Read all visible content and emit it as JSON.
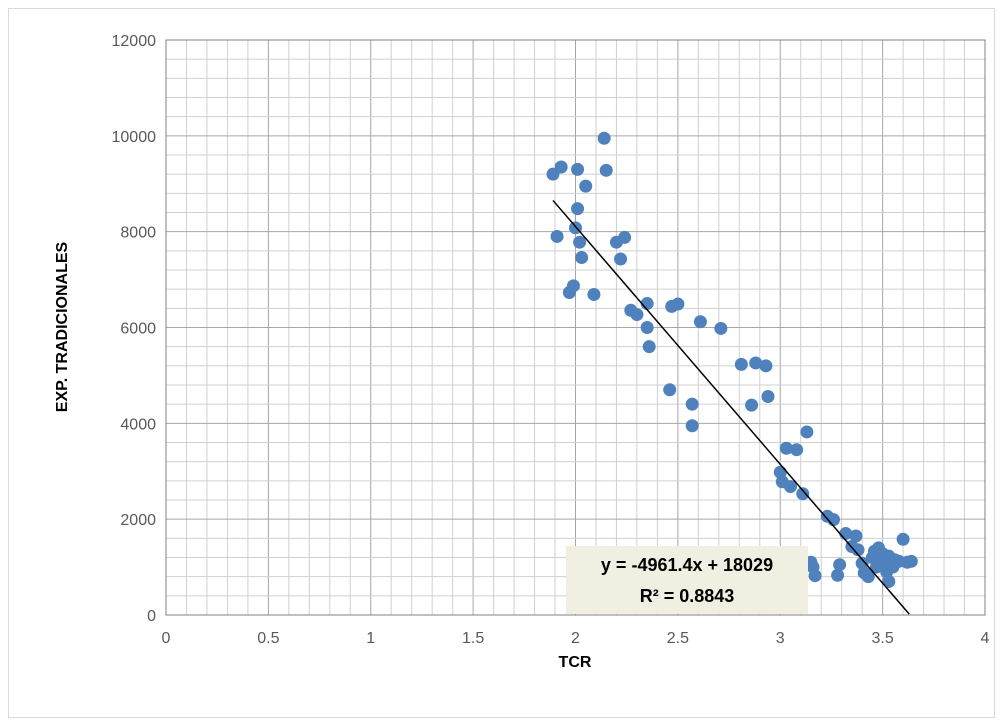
{
  "chart_data": {
    "type": "scatter",
    "title": "",
    "xlabel": "TCR",
    "ylabel": "EXP. TRADICIONALES",
    "xlim": [
      0,
      4
    ],
    "ylim": [
      0,
      12000
    ],
    "x_ticks": [
      "0",
      "0.5",
      "1",
      "1.5",
      "2",
      "2.5",
      "3",
      "3.5",
      "4"
    ],
    "y_ticks": [
      "0",
      "2000",
      "4000",
      "6000",
      "8000",
      "10000",
      "12000"
    ],
    "grid": true,
    "legend": "none",
    "marker_color": "#4f81bd",
    "series": [
      {
        "points": [
          [
            1.89,
            9200
          ],
          [
            1.93,
            9350
          ],
          [
            2.01,
            9300
          ],
          [
            2.14,
            9950
          ],
          [
            2.15,
            9280
          ],
          [
            2.05,
            8950
          ],
          [
            2.01,
            8480
          ],
          [
            2.0,
            8080
          ],
          [
            1.91,
            7900
          ],
          [
            2.02,
            7780
          ],
          [
            2.03,
            7460
          ],
          [
            2.2,
            7780
          ],
          [
            2.24,
            7880
          ],
          [
            2.22,
            7430
          ],
          [
            1.97,
            6730
          ],
          [
            1.99,
            6870
          ],
          [
            2.09,
            6690
          ],
          [
            2.27,
            6360
          ],
          [
            2.3,
            6270
          ],
          [
            2.35,
            6500
          ],
          [
            2.47,
            6440
          ],
          [
            2.5,
            6490
          ],
          [
            2.35,
            6000
          ],
          [
            2.36,
            5600
          ],
          [
            2.61,
            6120
          ],
          [
            2.71,
            5980
          ],
          [
            2.46,
            4700
          ],
          [
            2.57,
            4400
          ],
          [
            2.57,
            3950
          ],
          [
            2.81,
            5230
          ],
          [
            2.88,
            5260
          ],
          [
            2.93,
            5200
          ],
          [
            2.86,
            4380
          ],
          [
            2.94,
            4560
          ],
          [
            3.13,
            3820
          ],
          [
            3.03,
            3480
          ],
          [
            3.08,
            3450
          ],
          [
            3.0,
            2980
          ],
          [
            3.01,
            2780
          ],
          [
            3.05,
            2680
          ],
          [
            3.11,
            2530
          ],
          [
            3.23,
            2060
          ],
          [
            3.26,
            1990
          ],
          [
            3.32,
            1700
          ],
          [
            3.37,
            1650
          ],
          [
            3.35,
            1430
          ],
          [
            3.38,
            1360
          ],
          [
            3.15,
            1100
          ],
          [
            3.16,
            1000
          ],
          [
            3.17,
            820
          ],
          [
            3.28,
            830
          ],
          [
            3.29,
            1050
          ],
          [
            3.4,
            1080
          ],
          [
            3.41,
            880
          ],
          [
            3.43,
            800
          ],
          [
            3.45,
            1200
          ],
          [
            3.46,
            1330
          ],
          [
            3.48,
            1400
          ],
          [
            3.49,
            1050
          ],
          [
            3.5,
            1280
          ],
          [
            3.51,
            1150
          ],
          [
            3.52,
            900
          ],
          [
            3.53,
            1230
          ],
          [
            3.53,
            700
          ],
          [
            3.55,
            1000
          ],
          [
            3.56,
            1150
          ],
          [
            3.58,
            1120
          ],
          [
            3.6,
            1580
          ],
          [
            3.62,
            1100
          ],
          [
            3.64,
            1120
          ],
          [
            3.47,
            1000
          ],
          [
            3.54,
            1080
          ]
        ]
      }
    ],
    "trendline": {
      "slope": -4961.4,
      "intercept": 18029,
      "x_start": 1.89,
      "x_end": 3.63,
      "color": "#000000",
      "equation": "y = -4961.4x + 18029",
      "r_squared": "R² = 0.8843"
    }
  }
}
